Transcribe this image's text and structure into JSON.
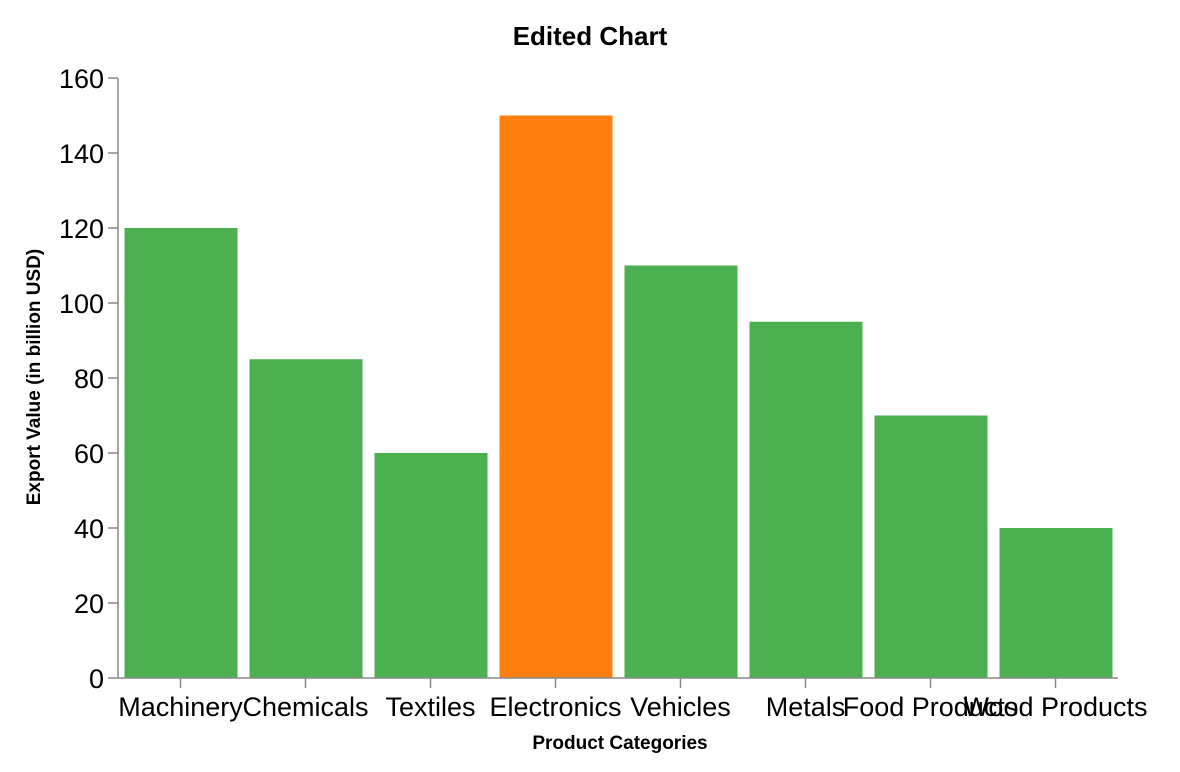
{
  "chart_data": {
    "type": "bar",
    "title": "Edited Chart",
    "xlabel": "Product Categories",
    "ylabel": "Export Value (in billion USD)",
    "ylim": [
      0,
      160
    ],
    "yticks": [
      0,
      20,
      40,
      60,
      80,
      100,
      120,
      140,
      160
    ],
    "categories": [
      "Machinery",
      "Chemicals",
      "Textiles",
      "Electronics",
      "Vehicles",
      "Metals",
      "Food Products",
      "Wood Products"
    ],
    "values": [
      120,
      85,
      60,
      150,
      110,
      95,
      70,
      40
    ],
    "colors": [
      "#4caf50",
      "#4caf50",
      "#4caf50",
      "#ff7f0e",
      "#4caf50",
      "#4caf50",
      "#4caf50",
      "#4caf50"
    ],
    "grid": false,
    "legend": "none"
  }
}
